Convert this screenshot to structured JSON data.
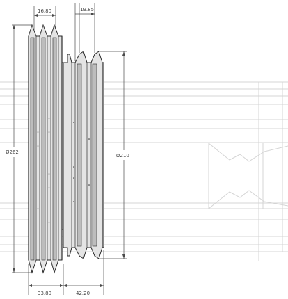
{
  "drawing": {
    "title": "",
    "dimensions": {
      "large_diameter": "Ø262",
      "small_diameter": "Ø210",
      "large_groove_pitch": "16.80",
      "small_groove_pitch": "19.85",
      "large_width": "33.80",
      "small_width": "42.20"
    }
  },
  "colors": {
    "outline": "#2b2b2b",
    "body_fill": "#c9c9c9",
    "body_light": "#e9e9e9",
    "dim_line": "#4a4a4a",
    "ghost_line": "#d4d4d4"
  }
}
